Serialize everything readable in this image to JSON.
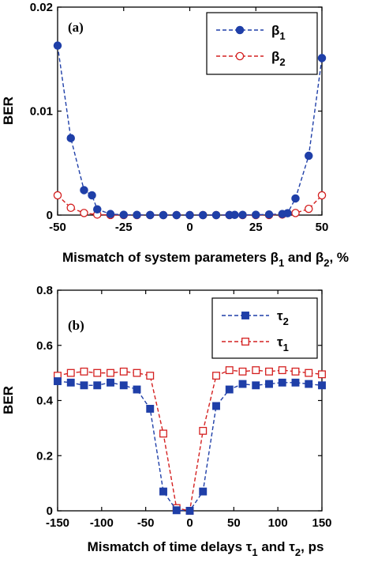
{
  "chart_data": [
    {
      "type": "scatter",
      "panel_label": "(a)",
      "xlabel": "Mismatch of system parameters β1 and β2, %",
      "xlabel_parts": {
        "main": "Mismatch of system parameters β",
        "s1": "1",
        "mid": " and β",
        "s2": "2",
        "end": ", %"
      },
      "ylabel": "BER",
      "xlim": [
        -50,
        50
      ],
      "ylim": [
        0,
        0.02
      ],
      "xticks": [
        -50,
        -25,
        0,
        25,
        50
      ],
      "xtick_labels": [
        "-50",
        "-25",
        "0",
        "25",
        "50"
      ],
      "yticks": [
        0,
        0.01,
        0.02
      ],
      "ytick_labels": [
        "0",
        "0.01",
        "0.02"
      ],
      "legend_position": "top-right",
      "series": [
        {
          "name": "β1",
          "legend_base": "β",
          "legend_sub": "1",
          "color": "#1f3fa8",
          "marker": "filled-circle",
          "x": [
            -50,
            -45,
            -40,
            -37,
            -35,
            -30,
            -25,
            -20,
            -15,
            -10,
            -5,
            0,
            5,
            10,
            15,
            17,
            20,
            25,
            30,
            35,
            37,
            40,
            45,
            50
          ],
          "y": [
            0.0163,
            0.0074,
            0.0024,
            0.0019,
            0.00055,
            0.0001,
            3e-05,
            2e-05,
            1e-05,
            0,
            0,
            0,
            0,
            0,
            1e-05,
            2e-05,
            2e-05,
            3e-05,
            6e-05,
            0.0001,
            0.00018,
            0.0016,
            0.0057,
            0.0151
          ]
        },
        {
          "name": "β2",
          "legend_base": "β",
          "legend_sub": "2",
          "color": "#d42020",
          "marker": "open-circle",
          "x": [
            -50,
            -45,
            -40,
            -35,
            -30,
            -25,
            -20,
            -15,
            -10,
            -5,
            0,
            5,
            10,
            15,
            20,
            25,
            30,
            35,
            40,
            45,
            50
          ],
          "y": [
            0.0019,
            0.0007,
            0.0002,
            5e-05,
            1e-05,
            0,
            0,
            0,
            0,
            0,
            0,
            0,
            0,
            0,
            0,
            0,
            1e-05,
            5e-05,
            0.0002,
            0.0006,
            0.0019
          ]
        }
      ]
    },
    {
      "type": "line",
      "panel_label": "(b)",
      "xlabel": "Mismatch of time delays τ1 and τ2, ps",
      "xlabel_parts": {
        "main": "Mismatch of time delays τ",
        "s1": "1",
        "mid": " and τ",
        "s2": "2",
        "end": ", ps"
      },
      "ylabel": "BER",
      "xlim": [
        -150,
        150
      ],
      "ylim": [
        0,
        0.8
      ],
      "xticks": [
        -150,
        -100,
        -50,
        0,
        50,
        100,
        150
      ],
      "xtick_labels": [
        "-150",
        "-100",
        "-50",
        "0",
        "50",
        "100",
        "150"
      ],
      "yticks": [
        0,
        0.2,
        0.4,
        0.6,
        0.8
      ],
      "ytick_labels": [
        "0",
        "0.2",
        "0.4",
        "0.6",
        "0.8"
      ],
      "legend_position": "top-right",
      "series": [
        {
          "name": "τ2",
          "legend_base": "τ",
          "legend_sub": "2",
          "color": "#1f3fa8",
          "marker": "filled-square",
          "x": [
            -150,
            -135,
            -120,
            -105,
            -90,
            -75,
            -60,
            -45,
            -30,
            -15,
            0,
            15,
            30,
            45,
            60,
            75,
            90,
            105,
            120,
            135,
            150
          ],
          "y": [
            0.47,
            0.465,
            0.455,
            0.455,
            0.465,
            0.455,
            0.44,
            0.37,
            0.07,
            0.002,
            0,
            0.07,
            0.38,
            0.44,
            0.46,
            0.455,
            0.46,
            0.465,
            0.465,
            0.46,
            0.455
          ]
        },
        {
          "name": "τ1",
          "legend_base": "τ",
          "legend_sub": "1",
          "color": "#d42020",
          "marker": "open-square",
          "x": [
            -150,
            -135,
            -120,
            -105,
            -90,
            -75,
            -60,
            -45,
            -30,
            -15,
            0,
            15,
            30,
            45,
            60,
            75,
            90,
            105,
            120,
            135,
            150
          ],
          "y": [
            0.49,
            0.5,
            0.505,
            0.5,
            0.5,
            0.505,
            0.5,
            0.49,
            0.28,
            0.01,
            0,
            0.29,
            0.49,
            0.51,
            0.505,
            0.51,
            0.505,
            0.51,
            0.505,
            0.5,
            0.495
          ]
        }
      ]
    }
  ]
}
